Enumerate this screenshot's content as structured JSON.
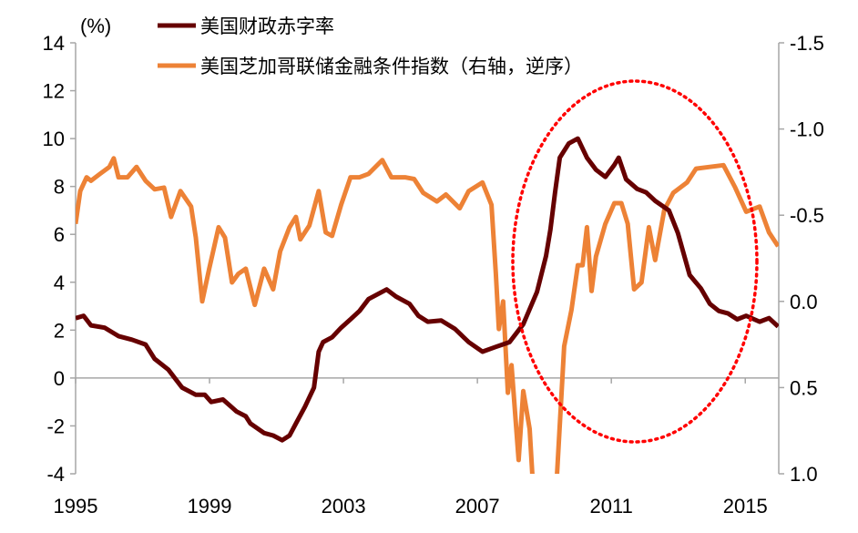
{
  "chart_data": {
    "type": "line",
    "unit_label": "(%)",
    "xlim": [
      1995,
      2016
    ],
    "x_ticks": [
      "1995",
      "1999",
      "2003",
      "2007",
      "2011",
      "2015"
    ],
    "y_left": {
      "lim": [
        -4,
        14
      ],
      "ticks": [
        "14",
        "12",
        "10",
        "8",
        "6",
        "4",
        "2",
        "0",
        "-2",
        "-4"
      ]
    },
    "y_right": {
      "lim": [
        -1.5,
        1.0
      ],
      "reversed": true,
      "ticks": [
        "-1.5",
        "-1.0",
        "-0.5",
        "0.0",
        "0.5",
        "1.0"
      ]
    },
    "grid": false,
    "legend_position": "top",
    "annotation": {
      "shape": "dotted-ellipse",
      "color": "#ff0000",
      "x_range": [
        2007.6,
        2014.9
      ]
    },
    "series": [
      {
        "name": "美国财政赤字率",
        "axis": "left",
        "color": "#660000",
        "points": [
          [
            1995.0,
            2.5
          ],
          [
            1995.24,
            2.6
          ],
          [
            1995.46,
            2.2
          ],
          [
            1995.87,
            2.1
          ],
          [
            1996.28,
            1.75
          ],
          [
            1996.68,
            1.6
          ],
          [
            1997.09,
            1.4
          ],
          [
            1997.36,
            0.8
          ],
          [
            1997.77,
            0.35
          ],
          [
            1998.18,
            -0.4
          ],
          [
            1998.59,
            -0.7
          ],
          [
            1998.86,
            -0.7
          ],
          [
            1999.05,
            -1.0
          ],
          [
            1999.4,
            -0.9
          ],
          [
            1999.81,
            -1.4
          ],
          [
            2000.08,
            -1.6
          ],
          [
            2000.22,
            -1.9
          ],
          [
            2000.63,
            -2.3
          ],
          [
            2000.9,
            -2.4
          ],
          [
            2001.17,
            -2.6
          ],
          [
            2001.39,
            -2.4
          ],
          [
            2001.58,
            -1.9
          ],
          [
            2001.85,
            -1.2
          ],
          [
            2002.12,
            -0.4
          ],
          [
            2002.26,
            1.1
          ],
          [
            2002.39,
            1.5
          ],
          [
            2002.66,
            1.7
          ],
          [
            2002.93,
            2.1
          ],
          [
            2003.21,
            2.45
          ],
          [
            2003.48,
            2.8
          ],
          [
            2003.75,
            3.3
          ],
          [
            2004.02,
            3.5
          ],
          [
            2004.29,
            3.7
          ],
          [
            2004.57,
            3.4
          ],
          [
            2004.97,
            3.1
          ],
          [
            2005.24,
            2.6
          ],
          [
            2005.52,
            2.35
          ],
          [
            2005.92,
            2.4
          ],
          [
            2006.33,
            2.05
          ],
          [
            2006.74,
            1.5
          ],
          [
            2007.15,
            1.1
          ],
          [
            2007.55,
            1.3
          ],
          [
            2007.96,
            1.5
          ],
          [
            2008.37,
            2.25
          ],
          [
            2008.78,
            3.6
          ],
          [
            2009.05,
            5.1
          ],
          [
            2009.18,
            6.2
          ],
          [
            2009.32,
            7.75
          ],
          [
            2009.46,
            9.2
          ],
          [
            2009.73,
            9.8
          ],
          [
            2010.0,
            10.0
          ],
          [
            2010.27,
            9.2
          ],
          [
            2010.54,
            8.7
          ],
          [
            2010.82,
            8.4
          ],
          [
            2011.09,
            8.9
          ],
          [
            2011.22,
            9.2
          ],
          [
            2011.44,
            8.3
          ],
          [
            2011.77,
            7.9
          ],
          [
            2012.04,
            7.75
          ],
          [
            2012.31,
            7.4
          ],
          [
            2012.72,
            7.0
          ],
          [
            2012.99,
            6.05
          ],
          [
            2013.34,
            4.3
          ],
          [
            2013.67,
            3.75
          ],
          [
            2013.94,
            3.1
          ],
          [
            2014.21,
            2.8
          ],
          [
            2014.48,
            2.7
          ],
          [
            2014.76,
            2.45
          ],
          [
            2015.03,
            2.6
          ],
          [
            2015.43,
            2.35
          ],
          [
            2015.71,
            2.5
          ],
          [
            2015.98,
            2.15
          ]
        ]
      },
      {
        "name": "美国芝加哥联储金融条件指数（右轴，逆序）",
        "axis": "right",
        "color": "#ed8236",
        "points": [
          [
            1995.0,
            -0.45
          ],
          [
            1995.14,
            -0.64
          ],
          [
            1995.33,
            -0.72
          ],
          [
            1995.46,
            -0.7
          ],
          [
            1995.73,
            -0.74
          ],
          [
            1996.01,
            -0.78
          ],
          [
            1996.14,
            -0.83
          ],
          [
            1996.28,
            -0.72
          ],
          [
            1996.55,
            -0.72
          ],
          [
            1996.82,
            -0.78
          ],
          [
            1997.09,
            -0.7
          ],
          [
            1997.36,
            -0.65
          ],
          [
            1997.64,
            -0.66
          ],
          [
            1997.85,
            -0.49
          ],
          [
            1998.13,
            -0.64
          ],
          [
            1998.45,
            -0.55
          ],
          [
            1998.59,
            -0.37
          ],
          [
            1998.78,
            0.0
          ],
          [
            1998.99,
            -0.19
          ],
          [
            1999.27,
            -0.43
          ],
          [
            1999.46,
            -0.37
          ],
          [
            1999.67,
            -0.11
          ],
          [
            1999.86,
            -0.16
          ],
          [
            2000.08,
            -0.19
          ],
          [
            2000.35,
            0.02
          ],
          [
            2000.63,
            -0.19
          ],
          [
            2000.9,
            -0.07
          ],
          [
            2001.11,
            -0.29
          ],
          [
            2001.39,
            -0.43
          ],
          [
            2001.58,
            -0.49
          ],
          [
            2001.71,
            -0.36
          ],
          [
            2001.98,
            -0.44
          ],
          [
            2002.26,
            -0.64
          ],
          [
            2002.47,
            -0.4
          ],
          [
            2002.66,
            -0.38
          ],
          [
            2002.93,
            -0.56
          ],
          [
            2003.21,
            -0.72
          ],
          [
            2003.48,
            -0.72
          ],
          [
            2003.75,
            -0.74
          ],
          [
            2004.16,
            -0.82
          ],
          [
            2004.43,
            -0.72
          ],
          [
            2004.84,
            -0.72
          ],
          [
            2005.11,
            -0.71
          ],
          [
            2005.38,
            -0.63
          ],
          [
            2005.79,
            -0.58
          ],
          [
            2006.06,
            -0.62
          ],
          [
            2006.47,
            -0.54
          ],
          [
            2006.74,
            -0.64
          ],
          [
            2007.15,
            -0.69
          ],
          [
            2007.42,
            -0.56
          ],
          [
            2007.55,
            -0.16
          ],
          [
            2007.64,
            0.16
          ],
          [
            2007.77,
            0.0
          ],
          [
            2007.91,
            0.53
          ],
          [
            2008.02,
            0.37
          ],
          [
            2008.23,
            0.92
          ],
          [
            2008.37,
            0.52
          ],
          [
            2008.56,
            0.74
          ],
          [
            2008.64,
            1.0
          ],
          [
            2008.91,
            1.2
          ],
          [
            2009.18,
            1.2
          ],
          [
            2009.38,
            1.0
          ],
          [
            2009.59,
            0.26
          ],
          [
            2009.81,
            0.05
          ],
          [
            2010.0,
            -0.21
          ],
          [
            2010.14,
            -0.21
          ],
          [
            2010.27,
            -0.43
          ],
          [
            2010.41,
            -0.06
          ],
          [
            2010.54,
            -0.26
          ],
          [
            2010.82,
            -0.45
          ],
          [
            2011.09,
            -0.57
          ],
          [
            2011.3,
            -0.57
          ],
          [
            2011.49,
            -0.45
          ],
          [
            2011.68,
            -0.07
          ],
          [
            2011.9,
            -0.11
          ],
          [
            2012.12,
            -0.43
          ],
          [
            2012.31,
            -0.24
          ],
          [
            2012.58,
            -0.53
          ],
          [
            2012.85,
            -0.63
          ],
          [
            2013.26,
            -0.69
          ],
          [
            2013.53,
            -0.77
          ],
          [
            2013.94,
            -0.78
          ],
          [
            2014.35,
            -0.79
          ],
          [
            2014.7,
            -0.66
          ],
          [
            2015.03,
            -0.52
          ],
          [
            2015.43,
            -0.55
          ],
          [
            2015.71,
            -0.4
          ],
          [
            2015.98,
            -0.32
          ]
        ]
      }
    ]
  }
}
